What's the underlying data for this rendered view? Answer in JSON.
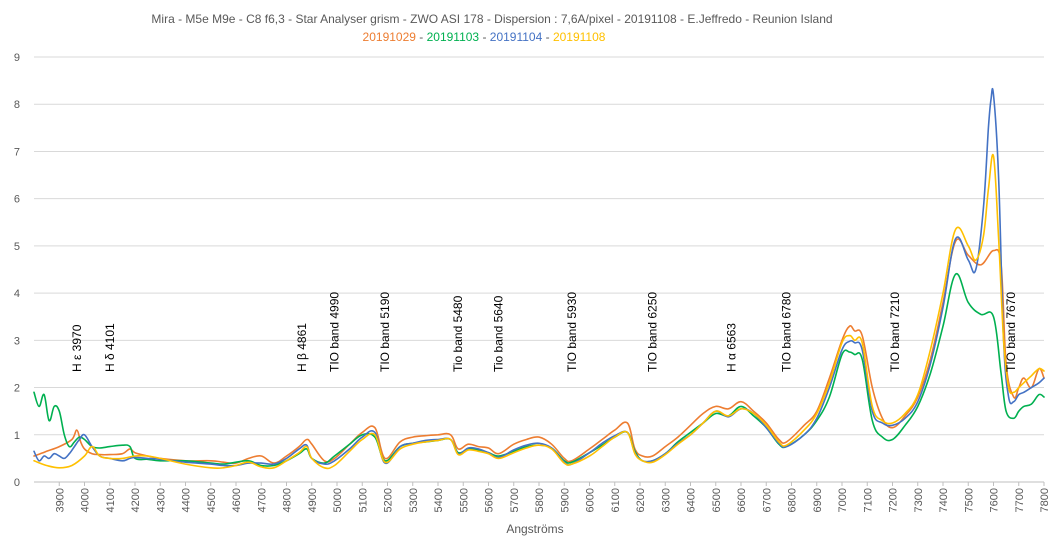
{
  "chart_data": {
    "type": "line",
    "title": "Mira - M5e M9e - C8  f6,3 - Star Analyser grism - ZWO ASI 178 - Dispersion : 7,6A/pixel - 20191108 - E.Jeffredo - Reunion Island",
    "subtitle_parts": [
      {
        "text": "20191029",
        "color": "#ED7D31"
      },
      {
        "text": " - ",
        "color": "#595959"
      },
      {
        "text": "20191103",
        "color": "#00B050"
      },
      {
        "text": " - ",
        "color": "#595959"
      },
      {
        "text": "20191104",
        "color": "#4472C4"
      },
      {
        "text": " - ",
        "color": "#595959"
      },
      {
        "text": "20191108",
        "color": "#FFC000"
      }
    ],
    "xlabel": "Angströms",
    "ylabel": "",
    "xlim": [
      3800,
      7800
    ],
    "ylim": [
      0,
      9
    ],
    "yticks": [
      "0",
      "1",
      "2",
      "3",
      "4",
      "5",
      "6",
      "7",
      "8",
      "9"
    ],
    "xticks": [
      "3900",
      "4000",
      "4100",
      "4200",
      "4300",
      "4400",
      "4500",
      "4600",
      "4700",
      "4800",
      "4900",
      "5000",
      "5100",
      "5200",
      "5300",
      "5400",
      "5500",
      "5600",
      "5700",
      "5800",
      "5900",
      "6000",
      "6100",
      "6200",
      "6300",
      "6400",
      "6500",
      "6600",
      "6700",
      "6800",
      "6900",
      "7000",
      "7100",
      "7200",
      "7300",
      "7400",
      "7500",
      "7600",
      "7700",
      "7800"
    ],
    "grid": "horizontal",
    "annotations": [
      {
        "text": "H ε 3970",
        "x": 3970
      },
      {
        "text": "H δ 4101",
        "x": 4101
      },
      {
        "text": "H β 4861",
        "x": 4861
      },
      {
        "text": "TIO band 4990",
        "x": 4990
      },
      {
        "text": "TIO band 5190",
        "x": 5190
      },
      {
        "text": "Tio band 5480",
        "x": 5480
      },
      {
        "text": "Tio  band 5640",
        "x": 5640
      },
      {
        "text": "TIO  band 5930",
        "x": 5930
      },
      {
        "text": "TIO band 6250",
        "x": 6250
      },
      {
        "text": "H α 6563",
        "x": 6563
      },
      {
        "text": "TIO band 6780",
        "x": 6780
      },
      {
        "text": "TIO band 7210",
        "x": 7210
      },
      {
        "text": "TIO band 7670",
        "x": 7670
      }
    ],
    "series": [
      {
        "name": "20191029",
        "color": "#ED7D31",
        "x": [
          3800,
          3850,
          3900,
          3950,
          3970,
          3985,
          4000,
          4030,
          4060,
          4100,
          4150,
          4180,
          4200,
          4250,
          4300,
          4400,
          4500,
          4550,
          4600,
          4650,
          4700,
          4750,
          4800,
          4850,
          4880,
          4900,
          4950,
          4990,
          5050,
          5100,
          5150,
          5190,
          5250,
          5300,
          5350,
          5400,
          5450,
          5480,
          5520,
          5560,
          5600,
          5640,
          5700,
          5750,
          5800,
          5850,
          5900,
          5930,
          6000,
          6050,
          6100,
          6150,
          6180,
          6210,
          6250,
          6300,
          6350,
          6400,
          6450,
          6500,
          6550,
          6600,
          6650,
          6700,
          6750,
          6780,
          6850,
          6900,
          6950,
          7000,
          7030,
          7050,
          7080,
          7120,
          7160,
          7200,
          7250,
          7300,
          7350,
          7400,
          7450,
          7500,
          7550,
          7600,
          7630,
          7650,
          7680,
          7700,
          7720,
          7750,
          7780,
          7800
        ],
        "y": [
          0.55,
          0.65,
          0.75,
          0.9,
          1.1,
          0.85,
          0.7,
          0.6,
          0.58,
          0.58,
          0.6,
          0.7,
          0.62,
          0.55,
          0.5,
          0.45,
          0.45,
          0.42,
          0.4,
          0.5,
          0.55,
          0.4,
          0.55,
          0.75,
          0.9,
          0.8,
          0.45,
          0.5,
          0.8,
          1.05,
          1.15,
          0.5,
          0.85,
          0.95,
          0.98,
          1.0,
          1.0,
          0.7,
          0.8,
          0.75,
          0.72,
          0.6,
          0.8,
          0.9,
          0.95,
          0.8,
          0.5,
          0.45,
          0.7,
          0.9,
          1.1,
          1.25,
          0.7,
          0.55,
          0.55,
          0.75,
          0.95,
          1.2,
          1.45,
          1.6,
          1.55,
          1.7,
          1.5,
          1.25,
          0.9,
          0.85,
          1.2,
          1.5,
          2.2,
          3.0,
          3.3,
          3.2,
          3.1,
          2.0,
          1.35,
          1.15,
          1.4,
          1.8,
          2.6,
          3.8,
          5.1,
          4.8,
          4.6,
          4.9,
          4.6,
          2.5,
          1.8,
          2.0,
          2.2,
          2.0,
          2.4,
          2.2
        ]
      },
      {
        "name": "20191103",
        "color": "#00B050",
        "x": [
          3800,
          3820,
          3840,
          3860,
          3880,
          3900,
          3920,
          3940,
          3960,
          3980,
          4000,
          4030,
          4060,
          4100,
          4150,
          4180,
          4200,
          4250,
          4300,
          4400,
          4500,
          4550,
          4600,
          4650,
          4700,
          4750,
          4800,
          4850,
          4880,
          4900,
          4950,
          4990,
          5050,
          5100,
          5150,
          5190,
          5250,
          5300,
          5350,
          5400,
          5450,
          5480,
          5520,
          5560,
          5600,
          5640,
          5700,
          5750,
          5800,
          5850,
          5900,
          5930,
          6000,
          6050,
          6100,
          6150,
          6180,
          6210,
          6250,
          6300,
          6350,
          6400,
          6450,
          6500,
          6550,
          6600,
          6650,
          6700,
          6750,
          6780,
          6850,
          6900,
          6950,
          7000,
          7030,
          7050,
          7080,
          7120,
          7160,
          7200,
          7250,
          7300,
          7350,
          7400,
          7450,
          7500,
          7550,
          7600,
          7630,
          7650,
          7680,
          7700,
          7720,
          7750,
          7780,
          7800
        ],
        "y": [
          1.9,
          1.6,
          1.85,
          1.3,
          1.6,
          1.5,
          1.0,
          0.75,
          0.85,
          0.95,
          0.9,
          0.75,
          0.72,
          0.75,
          0.78,
          0.75,
          0.5,
          0.48,
          0.45,
          0.45,
          0.4,
          0.38,
          0.42,
          0.45,
          0.35,
          0.35,
          0.45,
          0.6,
          0.7,
          0.5,
          0.4,
          0.55,
          0.8,
          1.0,
          0.95,
          0.45,
          0.75,
          0.82,
          0.85,
          0.88,
          0.9,
          0.62,
          0.7,
          0.68,
          0.62,
          0.55,
          0.65,
          0.75,
          0.78,
          0.72,
          0.45,
          0.42,
          0.62,
          0.78,
          0.95,
          1.05,
          0.65,
          0.45,
          0.45,
          0.6,
          0.85,
          1.05,
          1.25,
          1.45,
          1.4,
          1.6,
          1.4,
          1.15,
          0.8,
          0.75,
          1.0,
          1.3,
          1.8,
          2.7,
          2.75,
          2.7,
          2.6,
          1.3,
          0.95,
          0.9,
          1.2,
          1.6,
          2.3,
          3.3,
          4.4,
          3.8,
          3.55,
          3.5,
          2.3,
          1.5,
          1.35,
          1.5,
          1.6,
          1.65,
          1.85,
          1.8
        ]
      },
      {
        "name": "20191104",
        "color": "#4472C4",
        "x": [
          3800,
          3820,
          3840,
          3860,
          3880,
          3900,
          3920,
          3940,
          3960,
          3980,
          4000,
          4030,
          4060,
          4100,
          4150,
          4180,
          4200,
          4250,
          4300,
          4400,
          4500,
          4550,
          4600,
          4650,
          4700,
          4750,
          4800,
          4850,
          4880,
          4900,
          4950,
          4990,
          5050,
          5100,
          5150,
          5190,
          5250,
          5300,
          5350,
          5400,
          5450,
          5480,
          5520,
          5560,
          5600,
          5640,
          5700,
          5750,
          5800,
          5850,
          5900,
          5930,
          6000,
          6050,
          6100,
          6150,
          6180,
          6210,
          6250,
          6300,
          6350,
          6400,
          6450,
          6500,
          6550,
          6600,
          6650,
          6700,
          6750,
          6780,
          6850,
          6900,
          6950,
          7000,
          7030,
          7050,
          7080,
          7120,
          7160,
          7200,
          7250,
          7300,
          7350,
          7400,
          7450,
          7500,
          7530,
          7560,
          7580,
          7590,
          7600,
          7620,
          7640,
          7660,
          7680,
          7700,
          7720,
          7750,
          7780,
          7800
        ],
        "y": [
          0.65,
          0.45,
          0.55,
          0.5,
          0.6,
          0.55,
          0.5,
          0.6,
          0.75,
          0.9,
          1.0,
          0.75,
          0.55,
          0.5,
          0.45,
          0.5,
          0.52,
          0.5,
          0.48,
          0.42,
          0.38,
          0.35,
          0.35,
          0.4,
          0.4,
          0.38,
          0.5,
          0.7,
          0.78,
          0.5,
          0.38,
          0.45,
          0.7,
          0.95,
          1.05,
          0.4,
          0.75,
          0.82,
          0.88,
          0.9,
          0.9,
          0.6,
          0.72,
          0.7,
          0.62,
          0.52,
          0.68,
          0.78,
          0.82,
          0.72,
          0.42,
          0.38,
          0.62,
          0.82,
          0.98,
          1.05,
          0.62,
          0.45,
          0.45,
          0.6,
          0.82,
          1.0,
          1.25,
          1.5,
          1.38,
          1.55,
          1.45,
          1.15,
          0.82,
          0.75,
          1.0,
          1.35,
          2.0,
          2.8,
          2.98,
          2.95,
          2.8,
          1.5,
          1.25,
          1.2,
          1.35,
          1.7,
          2.5,
          3.7,
          5.15,
          4.7,
          4.5,
          5.8,
          7.5,
          8.1,
          8.2,
          6.5,
          3.0,
          1.8,
          1.7,
          1.85,
          1.9,
          2.0,
          2.1,
          2.2
        ]
      },
      {
        "name": "20191108",
        "color": "#FFC000",
        "x": [
          3800,
          3850,
          3900,
          3950,
          4000,
          4030,
          4060,
          4100,
          4150,
          4200,
          4250,
          4300,
          4400,
          4500,
          4550,
          4600,
          4650,
          4700,
          4750,
          4800,
          4850,
          4880,
          4900,
          4950,
          4990,
          5050,
          5100,
          5150,
          5190,
          5250,
          5300,
          5350,
          5400,
          5450,
          5480,
          5520,
          5560,
          5600,
          5640,
          5700,
          5750,
          5800,
          5850,
          5900,
          5930,
          6000,
          6050,
          6100,
          6150,
          6180,
          6210,
          6250,
          6300,
          6350,
          6400,
          6450,
          6500,
          6550,
          6600,
          6650,
          6700,
          6750,
          6780,
          6850,
          6900,
          6950,
          7000,
          7030,
          7050,
          7080,
          7120,
          7160,
          7200,
          7250,
          7300,
          7350,
          7400,
          7450,
          7500,
          7530,
          7560,
          7580,
          7600,
          7620,
          7640,
          7660,
          7680,
          7700,
          7720,
          7750,
          7780,
          7800
        ],
        "y": [
          0.45,
          0.35,
          0.3,
          0.35,
          0.55,
          0.75,
          0.55,
          0.5,
          0.5,
          0.55,
          0.55,
          0.5,
          0.38,
          0.3,
          0.3,
          0.35,
          0.42,
          0.32,
          0.3,
          0.45,
          0.62,
          0.75,
          0.5,
          0.3,
          0.35,
          0.65,
          0.9,
          1.0,
          0.42,
          0.7,
          0.8,
          0.85,
          0.88,
          0.9,
          0.58,
          0.68,
          0.65,
          0.6,
          0.5,
          0.62,
          0.72,
          0.78,
          0.7,
          0.4,
          0.38,
          0.55,
          0.75,
          0.95,
          1.05,
          0.6,
          0.45,
          0.42,
          0.58,
          0.8,
          1.0,
          1.25,
          1.5,
          1.4,
          1.55,
          1.45,
          1.2,
          0.85,
          0.78,
          1.1,
          1.45,
          2.1,
          2.95,
          3.1,
          3.0,
          2.95,
          1.6,
          1.3,
          1.25,
          1.45,
          1.85,
          2.8,
          4.0,
          5.35,
          5.0,
          4.7,
          5.2,
          6.2,
          6.9,
          5.2,
          3.0,
          2.0,
          1.9,
          2.0,
          2.1,
          2.25,
          2.4,
          2.35
        ]
      }
    ]
  }
}
